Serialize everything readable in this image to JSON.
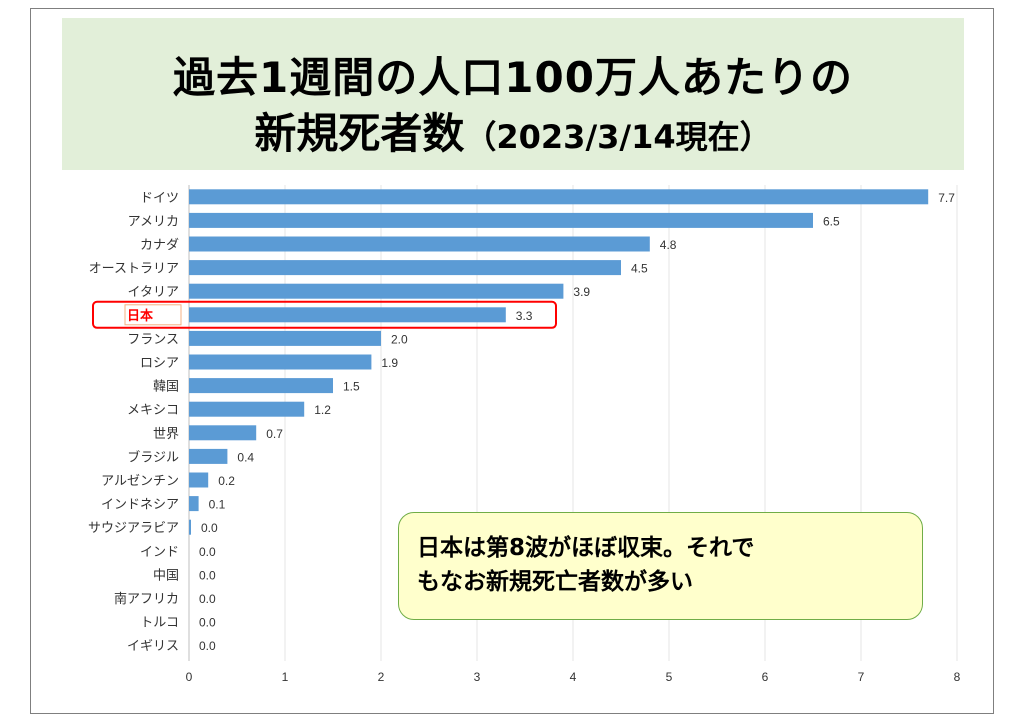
{
  "title": {
    "line1": "過去1週間の人口100万人あたりの",
    "line2_main": "新規死者数",
    "line2_suffix": "（2023/3/14現在）"
  },
  "callout": {
    "line1": "日本は第8波がほぼ収束。それで",
    "line2": "もなお新規死亡者数が多い"
  },
  "colors": {
    "bar": "#5b9bd5",
    "title_bg": "#e2efd9",
    "highlight": "#ff0000",
    "callout_bg": "#ffffcc",
    "callout_border": "#70ad47"
  },
  "chart_data": {
    "type": "bar",
    "orientation": "horizontal",
    "categories": [
      "ドイツ",
      "アメリカ",
      "カナダ",
      "オーストラリア",
      "イタリア",
      "日本",
      "フランス",
      "ロシア",
      "韓国",
      "メキシコ",
      "世界",
      "ブラジル",
      "アルゼンチン",
      "インドネシア",
      "サウジアラビア",
      "インド",
      "中国",
      "南アフリカ",
      "トルコ",
      "イギリス"
    ],
    "values": [
      7.7,
      6.5,
      4.8,
      4.5,
      3.9,
      3.3,
      2.0,
      1.9,
      1.5,
      1.2,
      0.7,
      0.4,
      0.2,
      0.1,
      0.0,
      0.0,
      0.0,
      0.0,
      0.0,
      0.0
    ],
    "value_labels": [
      "7.7",
      "6.5",
      "4.8",
      "4.5",
      "3.9",
      "3.3",
      "2.0",
      "1.9",
      "1.5",
      "1.2",
      "0.7",
      "0.4",
      "0.2",
      "0.1",
      "0.0",
      "0.0",
      "0.0",
      "0.0",
      "0.0",
      "0.0"
    ],
    "highlighted_category": "日本",
    "xlim": [
      0,
      8
    ],
    "x_ticks": [
      "0",
      "1",
      "2",
      "3",
      "4",
      "5",
      "6",
      "7",
      "8"
    ],
    "grid": true
  }
}
